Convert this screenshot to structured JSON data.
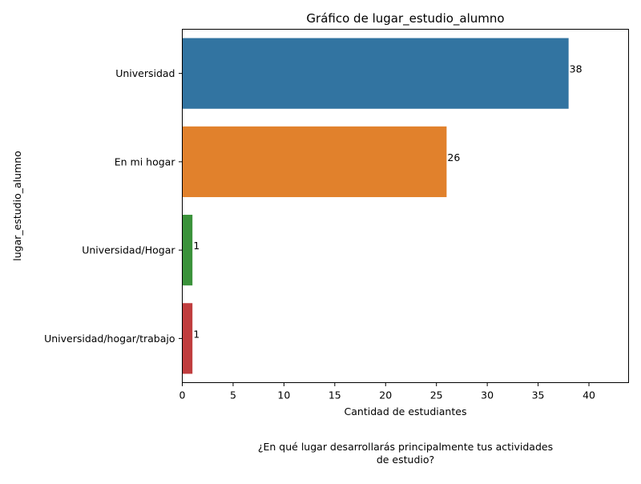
{
  "chart_data": {
    "type": "bar",
    "orientation": "horizontal",
    "title": "Gráfico de lugar_estudio_alumno",
    "xlabel": "Cantidad de estudiantes",
    "ylabel": "lugar_estudio_alumno",
    "caption_lines": [
      "¿En qué lugar desarrollarás principalmente tus actividades",
      "de estudio?"
    ],
    "categories": [
      "Universidad",
      "En mi hogar",
      "Universidad/Hogar",
      "Universidad/hogar/trabajo"
    ],
    "values": [
      38,
      26,
      1,
      1
    ],
    "data_labels": [
      "38",
      "26",
      "1",
      "1"
    ],
    "colors": [
      "#3274a1",
      "#e1812c",
      "#3a923a",
      "#c03d3e"
    ],
    "xlim": [
      0,
      43.9
    ],
    "xticks": [
      0,
      5,
      10,
      15,
      20,
      25,
      30,
      35,
      40
    ],
    "xtick_labels": [
      "0",
      "5",
      "10",
      "15",
      "20",
      "25",
      "30",
      "35",
      "40"
    ],
    "grid": false,
    "legend": "none"
  }
}
